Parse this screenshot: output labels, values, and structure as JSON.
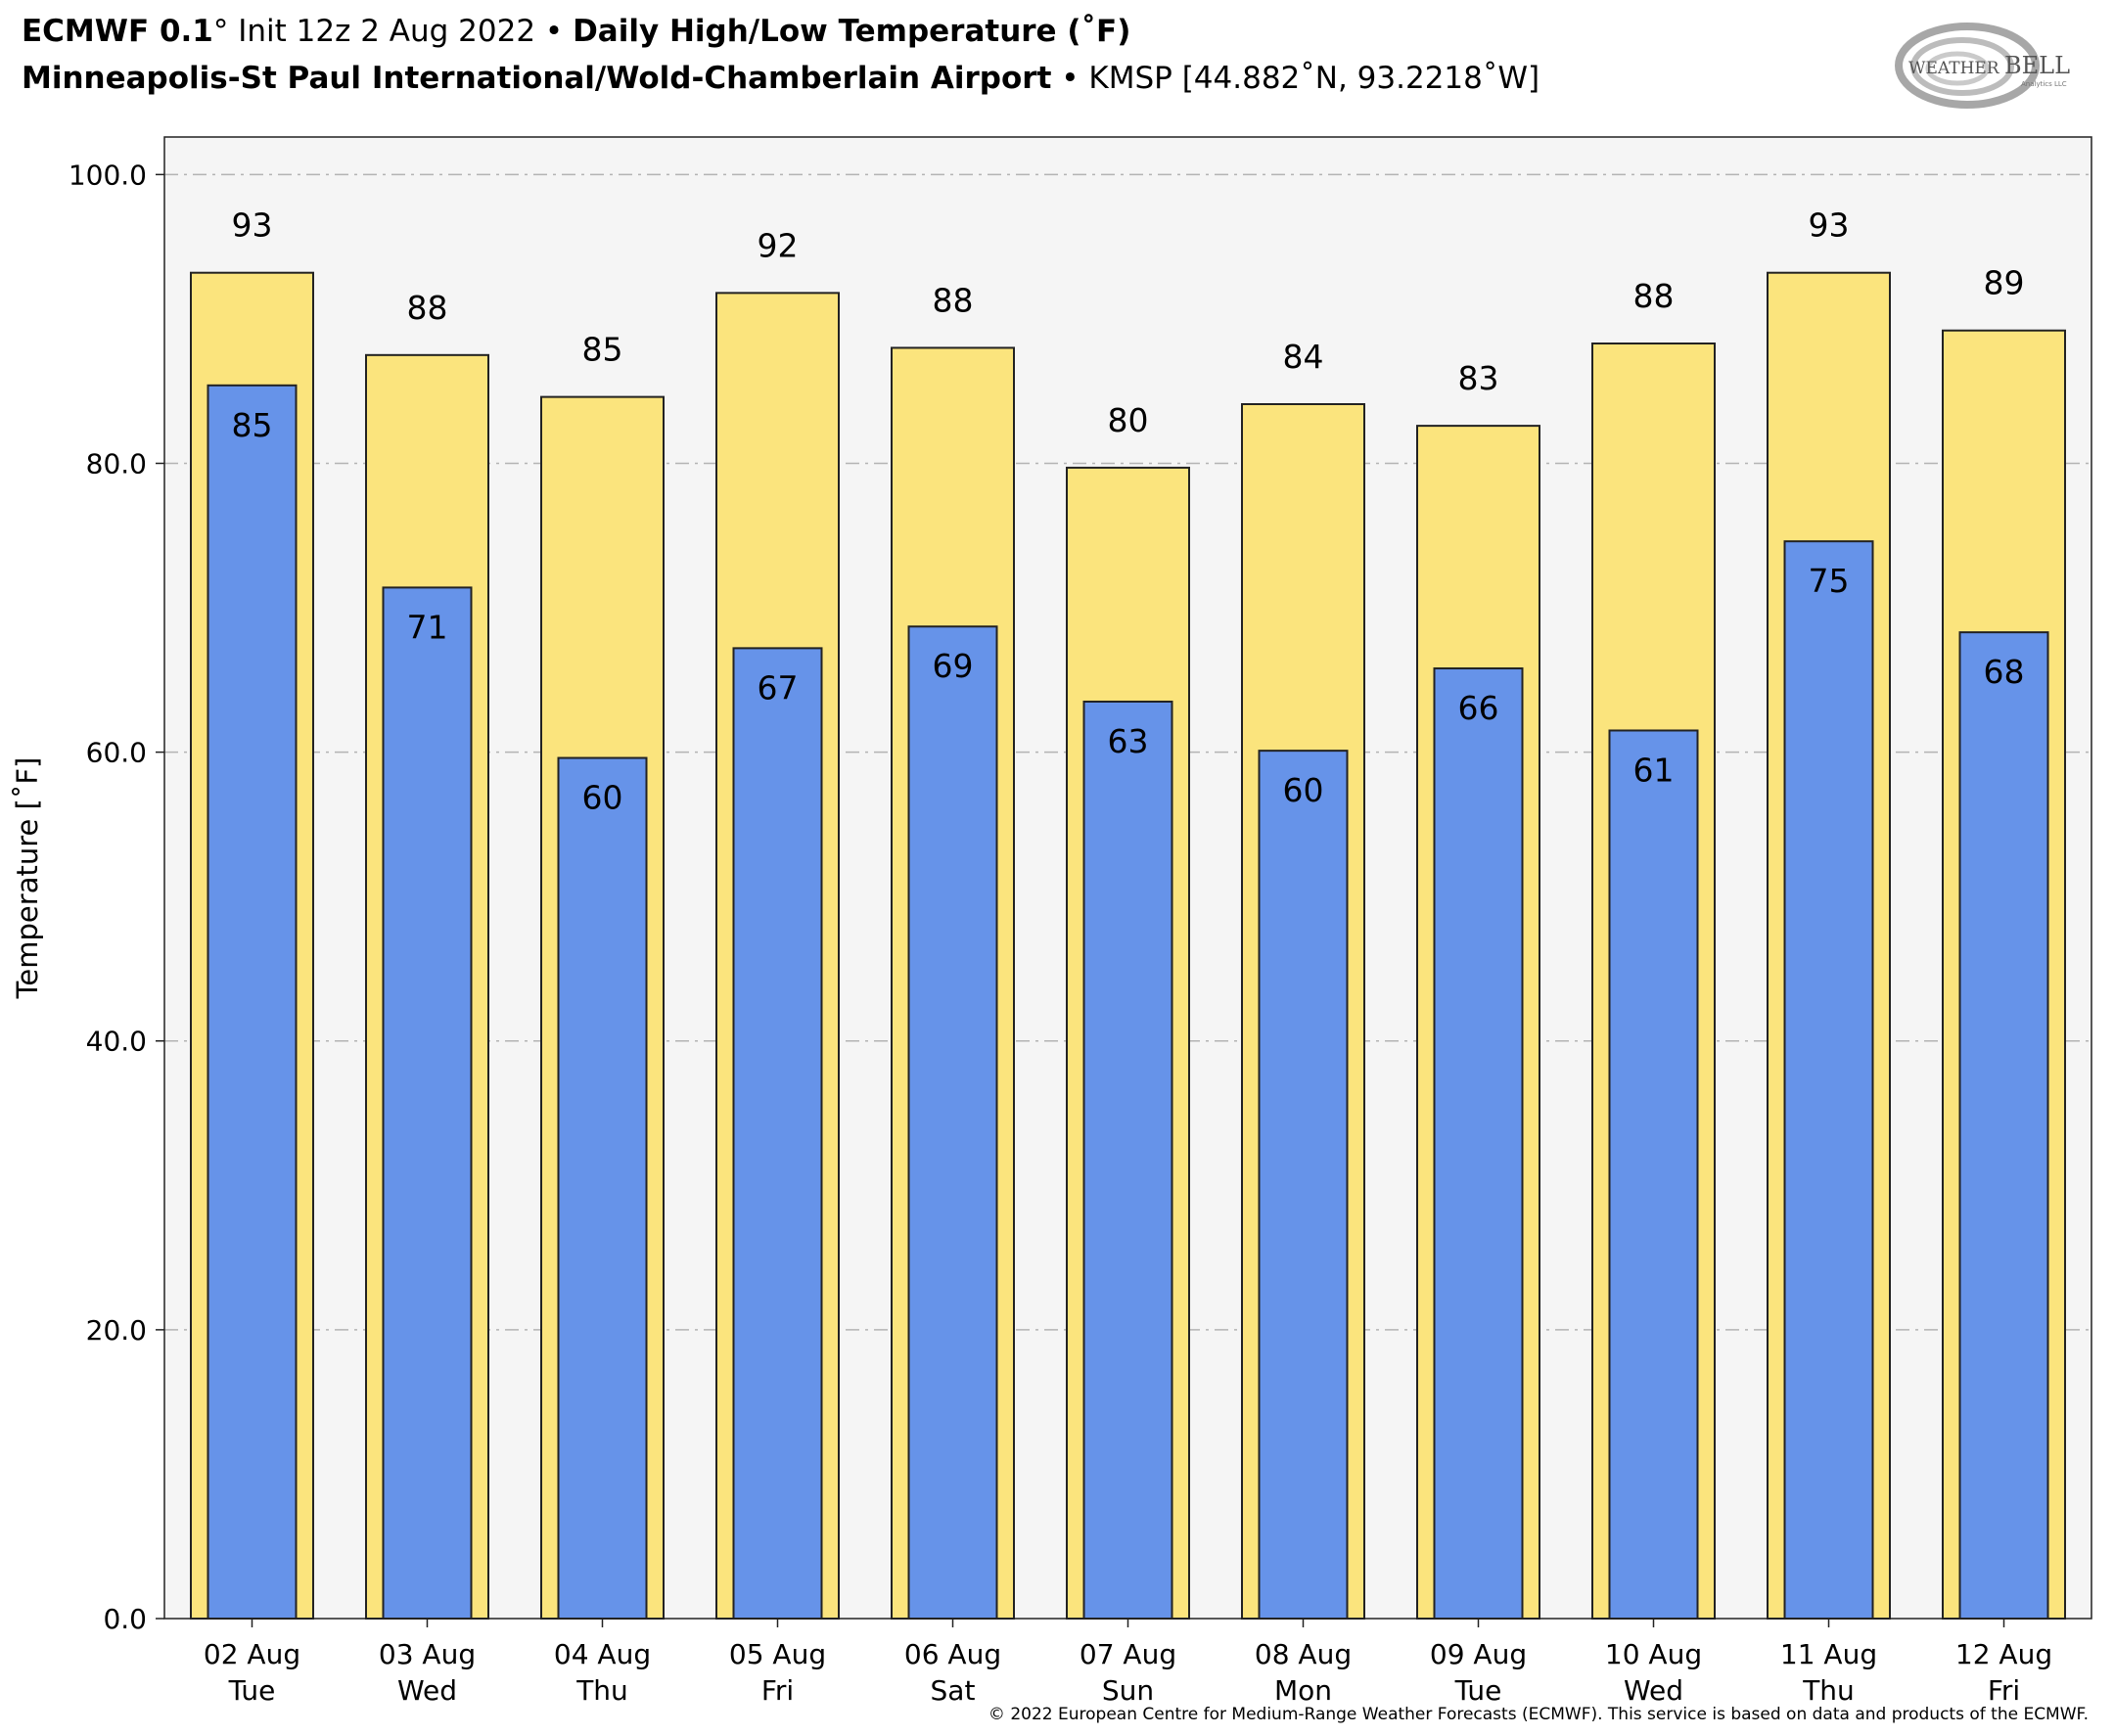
{
  "header": {
    "model": "ECMWF 0.1",
    "model_deg": "°",
    "init": " Init 12z 2 Aug 2022",
    "sep1": " • ",
    "product": "Daily High/Low Temperature (˚F)",
    "location": "Minneapolis-St Paul International/Wold-Chamberlain Airport",
    "sep2": " • ",
    "station": "KMSP [44.882˚N, 93.2218˚W]"
  },
  "logo": {
    "text_top": "WEATHER",
    "text_bell": "BELL",
    "sub": "Analytics LLC"
  },
  "copyright": "© 2022 European Centre for Medium-Range Weather Forecasts (ECMWF). This service is based on data and products of the ECMWF.",
  "colors": {
    "high_fill": "#fbe47d",
    "low_fill": "#6693e9",
    "plot_bg": "#f5f5f5",
    "grid": "#b4b4b4"
  },
  "chart_data": {
    "type": "bar",
    "ylabel": "Temperature [˚F]",
    "ylim": [
      0,
      100
    ],
    "yticks": [
      "0.0",
      "20.0",
      "40.0",
      "60.0",
      "80.0",
      "100.0"
    ],
    "grid": true,
    "categories": [
      [
        "02 Aug",
        "Tue"
      ],
      [
        "03 Aug",
        "Wed"
      ],
      [
        "04 Aug",
        "Thu"
      ],
      [
        "05 Aug",
        "Fri"
      ],
      [
        "06 Aug",
        "Sat"
      ],
      [
        "07 Aug",
        "Sun"
      ],
      [
        "08 Aug",
        "Mon"
      ],
      [
        "09 Aug",
        "Tue"
      ],
      [
        "10 Aug",
        "Wed"
      ],
      [
        "11 Aug",
        "Thu"
      ],
      [
        "12 Aug",
        "Fri"
      ]
    ],
    "series": [
      {
        "values": [
          93.2,
          87.5,
          84.6,
          91.8,
          88.0,
          79.7,
          84.1,
          82.6,
          88.3,
          93.2,
          89.2
        ],
        "labels": [
          "93",
          "88",
          "85",
          "92",
          "88",
          "80",
          "84",
          "83",
          "88",
          "93",
          "89"
        ]
      },
      {
        "values": [
          85.4,
          71.4,
          59.6,
          67.2,
          68.7,
          63.5,
          60.1,
          65.8,
          61.5,
          74.6,
          68.3
        ],
        "labels": [
          "85",
          "71",
          "60",
          "67",
          "69",
          "63",
          "60",
          "66",
          "61",
          "75",
          "68"
        ]
      }
    ]
  }
}
